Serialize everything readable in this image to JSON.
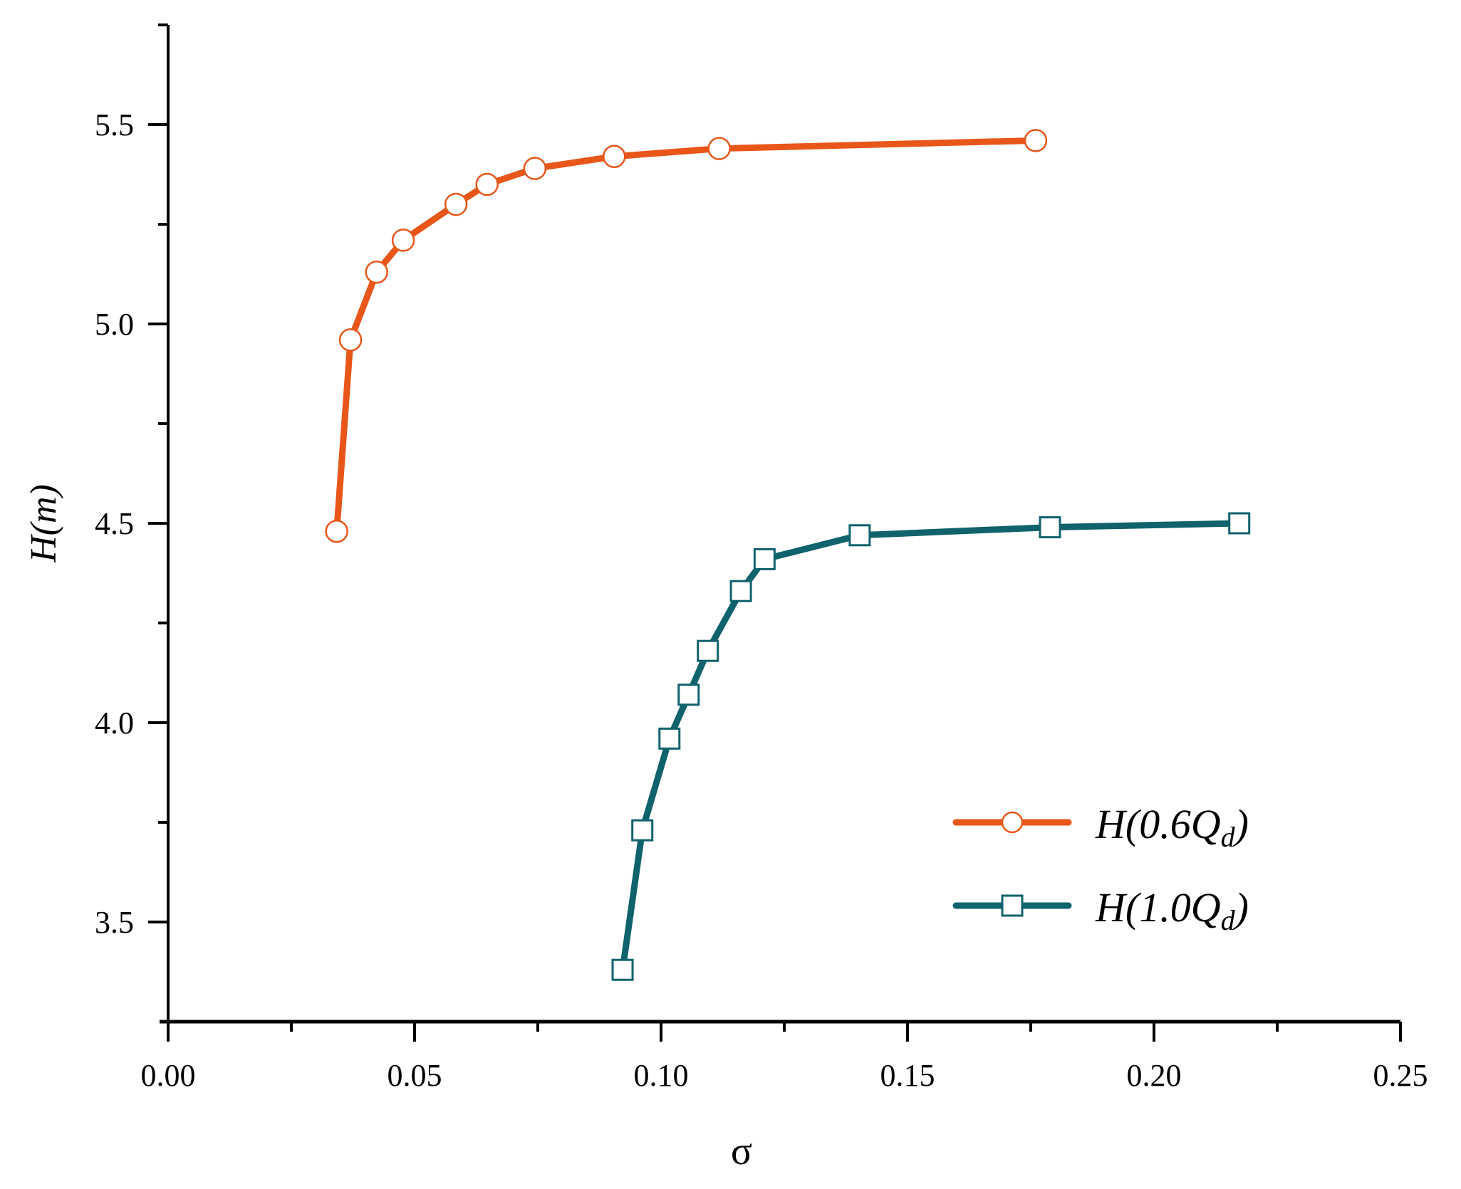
{
  "chart_data": {
    "type": "line",
    "title": "",
    "xlabel": "σ",
    "ylabel": "H(m)",
    "xlim": [
      0.0,
      0.25
    ],
    "ylim": [
      3.25,
      5.75
    ],
    "grid": false,
    "legend_position": "lower right",
    "x_ticks": [
      "0.00",
      "0.05",
      "0.10",
      "0.15",
      "0.20",
      "0.25"
    ],
    "y_ticks": [
      "3.5",
      "4.0",
      "4.5",
      "5.0",
      "5.5"
    ],
    "series": [
      {
        "name": "H(0.6Qd)",
        "label_main": "H(0.6Q",
        "label_sub": "d",
        "label_end": ")",
        "color": "#E8561A",
        "marker": "circle-open",
        "x": [
          0.0342,
          0.037,
          0.0423,
          0.0477,
          0.0584,
          0.0647,
          0.0744,
          0.0905,
          0.1118,
          0.176
        ],
        "y": [
          4.48,
          4.96,
          5.13,
          5.21,
          5.3,
          5.35,
          5.39,
          5.42,
          5.44,
          5.46
        ]
      },
      {
        "name": "H(1.0Qd)",
        "label_main": "H(1.0Q",
        "label_sub": "d",
        "label_end": ")",
        "color": "#10626C",
        "marker": "square-open",
        "x": [
          0.0922,
          0.0962,
          0.1017,
          0.1056,
          0.1095,
          0.1162,
          0.121,
          0.1403,
          0.1789,
          0.2173
        ],
        "y": [
          3.38,
          3.73,
          3.96,
          4.07,
          4.18,
          4.33,
          4.41,
          4.47,
          4.49,
          4.5
        ]
      }
    ]
  }
}
